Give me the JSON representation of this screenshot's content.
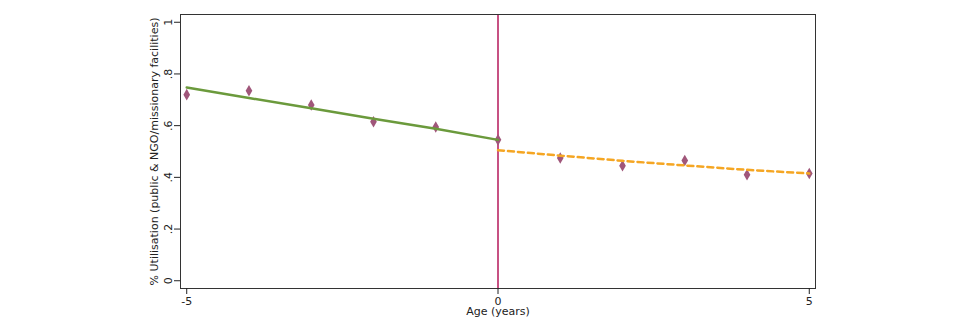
{
  "chart_data": {
    "type": "scatter",
    "xlabel": "Age (years)",
    "ylabel": "% Utilisation (public & NGO/missionary facilities)",
    "xlim": [
      -5.1,
      5.1
    ],
    "ylim": [
      -0.03,
      1.03
    ],
    "xticks": [
      -5,
      0,
      5
    ],
    "yticks": [
      0,
      {
        "value": 0.2,
        "label": ".2"
      },
      {
        "value": 0.4,
        "label": ".4"
      },
      {
        "value": 0.6,
        "label": ".6"
      },
      {
        "value": 0.8,
        "label": ".8"
      },
      1
    ],
    "grid": false,
    "vline": {
      "x": 0,
      "color": "#b5175a"
    },
    "series": [
      {
        "type": "scatter",
        "color": "#a0567a",
        "marker": "diamond",
        "x": [
          -5,
          -4,
          -3,
          -2,
          -1,
          0,
          1,
          2,
          3,
          4,
          5
        ],
        "values": [
          0.72,
          0.735,
          0.68,
          0.615,
          0.595,
          0.545,
          0.475,
          0.445,
          0.465,
          0.41,
          0.415
        ]
      },
      {
        "type": "line",
        "color": "#6b9a3c",
        "line_style": "solid",
        "x": [
          -5,
          -4,
          -3,
          -2,
          -1,
          0
        ],
        "values": [
          0.748,
          0.707,
          0.667,
          0.627,
          0.588,
          0.545
        ]
      },
      {
        "type": "line",
        "color": "#f5a623",
        "line_style": "dashed",
        "x": [
          0,
          1,
          2,
          3,
          4,
          5
        ],
        "values": [
          0.505,
          0.484,
          0.464,
          0.446,
          0.429,
          0.415
        ]
      }
    ]
  }
}
